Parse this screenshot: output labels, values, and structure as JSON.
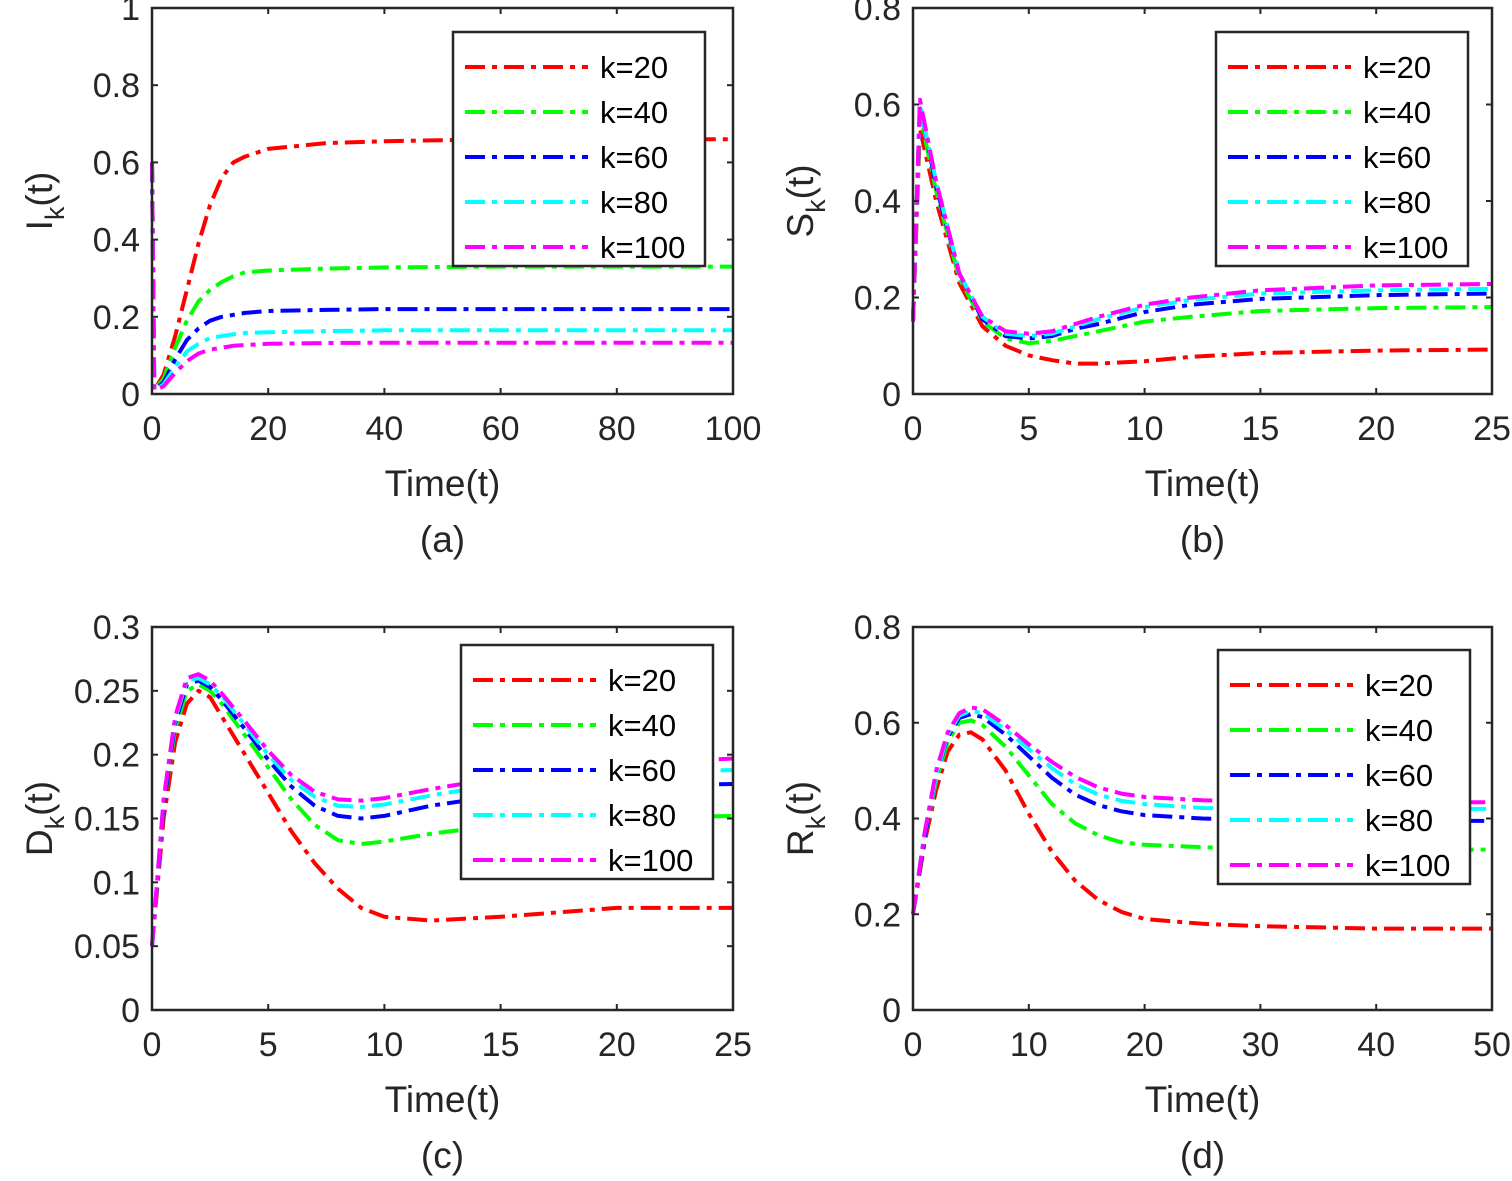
{
  "chart_data": [
    {
      "type": "line",
      "caption": "(a)",
      "xlabel": "Time(t)",
      "ylabel": "I",
      "ylabel_sub": "k",
      "ylabel_tail": "(t)",
      "xlim": [
        0,
        100
      ],
      "ylim": [
        0,
        1
      ],
      "xticks": [
        0,
        20,
        40,
        60,
        80,
        100
      ],
      "yticks": [
        0,
        0.2,
        0.4,
        0.6,
        0.8,
        1
      ],
      "ytick_labels": [
        "0",
        "0.2",
        "0.4",
        "0.6",
        "0.8",
        "1"
      ],
      "grid": false,
      "legend_position": "top-right",
      "series": [
        {
          "name": "k=20",
          "color": "#ff0000",
          "x": [
            0,
            0.4,
            2,
            4,
            6,
            8,
            10,
            12,
            14,
            16,
            20,
            30,
            40,
            60,
            80,
            100
          ],
          "y": [
            0.6,
            0.01,
            0.05,
            0.15,
            0.27,
            0.39,
            0.49,
            0.56,
            0.6,
            0.615,
            0.635,
            0.65,
            0.655,
            0.66,
            0.66,
            0.66
          ]
        },
        {
          "name": "k=40",
          "color": "#00ff00",
          "x": [
            0,
            0.4,
            2,
            4,
            6,
            8,
            10,
            12,
            14,
            16,
            20,
            30,
            40,
            60,
            80,
            100
          ],
          "y": [
            0.6,
            0.01,
            0.04,
            0.12,
            0.19,
            0.24,
            0.27,
            0.29,
            0.305,
            0.315,
            0.32,
            0.325,
            0.328,
            0.33,
            0.33,
            0.33
          ]
        },
        {
          "name": "k=60",
          "color": "#0000ff",
          "x": [
            0,
            0.4,
            2,
            4,
            6,
            8,
            10,
            12,
            14,
            16,
            20,
            30,
            40,
            60,
            80,
            100
          ],
          "y": [
            0.6,
            0.01,
            0.03,
            0.09,
            0.14,
            0.17,
            0.19,
            0.2,
            0.205,
            0.21,
            0.215,
            0.218,
            0.22,
            0.22,
            0.22,
            0.22
          ]
        },
        {
          "name": "k=80",
          "color": "#00ffff",
          "x": [
            0,
            0.4,
            2,
            4,
            6,
            8,
            10,
            12,
            14,
            16,
            20,
            30,
            40,
            60,
            80,
            100
          ],
          "y": [
            0.6,
            0.01,
            0.025,
            0.07,
            0.11,
            0.13,
            0.145,
            0.15,
            0.155,
            0.158,
            0.16,
            0.163,
            0.165,
            0.165,
            0.165,
            0.165
          ]
        },
        {
          "name": "k=100",
          "color": "#ff00ff",
          "x": [
            0,
            0.4,
            2,
            4,
            6,
            8,
            10,
            12,
            14,
            16,
            20,
            30,
            40,
            60,
            80,
            100
          ],
          "y": [
            0.6,
            0.01,
            0.02,
            0.055,
            0.085,
            0.105,
            0.115,
            0.12,
            0.125,
            0.127,
            0.13,
            0.132,
            0.133,
            0.133,
            0.133,
            0.133
          ]
        }
      ]
    },
    {
      "type": "line",
      "caption": "(b)",
      "xlabel": "Time(t)",
      "ylabel": "S",
      "ylabel_sub": "k",
      "ylabel_tail": "(t)",
      "xlim": [
        0,
        25
      ],
      "ylim": [
        0,
        0.8
      ],
      "xticks": [
        0,
        5,
        10,
        15,
        20,
        25
      ],
      "yticks": [
        0,
        0.2,
        0.4,
        0.6,
        0.8
      ],
      "ytick_labels": [
        "0",
        "0.2",
        "0.4",
        "0.6",
        "0.8"
      ],
      "grid": false,
      "legend_position": "top-right",
      "series": [
        {
          "name": "k=20",
          "color": "#ff0000",
          "x": [
            0,
            0.3,
            1,
            2,
            3,
            4,
            5,
            6,
            7,
            8,
            10,
            12,
            15,
            20,
            25
          ],
          "y": [
            0.15,
            0.55,
            0.4,
            0.23,
            0.14,
            0.1,
            0.08,
            0.07,
            0.063,
            0.063,
            0.068,
            0.077,
            0.085,
            0.09,
            0.092
          ]
        },
        {
          "name": "k=40",
          "color": "#00ff00",
          "x": [
            0,
            0.3,
            1,
            2,
            3,
            4,
            5,
            6,
            7,
            8,
            10,
            12,
            15,
            20,
            25
          ],
          "y": [
            0.15,
            0.58,
            0.42,
            0.24,
            0.15,
            0.115,
            0.105,
            0.11,
            0.12,
            0.13,
            0.15,
            0.16,
            0.172,
            0.178,
            0.18
          ]
        },
        {
          "name": "k=60",
          "color": "#0000ff",
          "x": [
            0,
            0.3,
            1,
            2,
            3,
            4,
            5,
            6,
            7,
            8,
            10,
            12,
            15,
            20,
            25
          ],
          "y": [
            0.15,
            0.6,
            0.43,
            0.25,
            0.155,
            0.12,
            0.115,
            0.12,
            0.135,
            0.145,
            0.17,
            0.185,
            0.197,
            0.205,
            0.208
          ]
        },
        {
          "name": "k=80",
          "color": "#00ffff",
          "x": [
            0,
            0.3,
            1,
            2,
            3,
            4,
            5,
            6,
            7,
            8,
            10,
            12,
            15,
            20,
            25
          ],
          "y": [
            0.15,
            0.6,
            0.44,
            0.25,
            0.16,
            0.125,
            0.12,
            0.125,
            0.14,
            0.155,
            0.18,
            0.195,
            0.208,
            0.215,
            0.218
          ]
        },
        {
          "name": "k=100",
          "color": "#ff00ff",
          "x": [
            0,
            0.3,
            1,
            2,
            3,
            4,
            5,
            6,
            7,
            8,
            10,
            12,
            15,
            20,
            25
          ],
          "y": [
            0.15,
            0.61,
            0.44,
            0.25,
            0.16,
            0.13,
            0.125,
            0.13,
            0.145,
            0.16,
            0.185,
            0.2,
            0.215,
            0.225,
            0.228
          ]
        }
      ]
    },
    {
      "type": "line",
      "caption": "(c)",
      "xlabel": "Time(t)",
      "ylabel": "D",
      "ylabel_sub": "k",
      "ylabel_tail": "(t)",
      "xlim": [
        0,
        25
      ],
      "ylim": [
        0,
        0.3
      ],
      "xticks": [
        0,
        5,
        10,
        15,
        20,
        25
      ],
      "yticks": [
        0,
        0.05,
        0.1,
        0.15,
        0.2,
        0.25,
        0.3
      ],
      "ytick_labels": [
        "0",
        "0.05",
        "0.1",
        "0.15",
        "0.2",
        "0.25",
        "0.3"
      ],
      "grid": false,
      "legend_position": "top-right",
      "series": [
        {
          "name": "k=20",
          "color": "#ff0000",
          "x": [
            0,
            0.5,
            1,
            1.5,
            2,
            2.5,
            3,
            4,
            5,
            6,
            7,
            8,
            9,
            10,
            12,
            15,
            20,
            25
          ],
          "y": [
            0.05,
            0.15,
            0.21,
            0.24,
            0.25,
            0.245,
            0.23,
            0.2,
            0.17,
            0.14,
            0.115,
            0.095,
            0.08,
            0.073,
            0.07,
            0.073,
            0.08,
            0.08
          ]
        },
        {
          "name": "k=40",
          "color": "#00ff00",
          "x": [
            0,
            0.5,
            1,
            1.5,
            2,
            2.5,
            3,
            4,
            5,
            6,
            7,
            8,
            9,
            10,
            12,
            15,
            20,
            25
          ],
          "y": [
            0.05,
            0.16,
            0.22,
            0.25,
            0.255,
            0.25,
            0.24,
            0.215,
            0.19,
            0.165,
            0.145,
            0.133,
            0.13,
            0.132,
            0.138,
            0.145,
            0.15,
            0.152
          ]
        },
        {
          "name": "k=60",
          "color": "#0000ff",
          "x": [
            0,
            0.5,
            1,
            1.5,
            2,
            2.5,
            3,
            4,
            5,
            6,
            7,
            8,
            9,
            10,
            12,
            15,
            20,
            25
          ],
          "y": [
            0.05,
            0.16,
            0.225,
            0.255,
            0.258,
            0.253,
            0.243,
            0.22,
            0.196,
            0.175,
            0.16,
            0.152,
            0.15,
            0.152,
            0.16,
            0.168,
            0.175,
            0.177
          ]
        },
        {
          "name": "k=80",
          "color": "#00ffff",
          "x": [
            0,
            0.5,
            1,
            1.5,
            2,
            2.5,
            3,
            4,
            5,
            6,
            7,
            8,
            9,
            10,
            12,
            15,
            20,
            25
          ],
          "y": [
            0.05,
            0.165,
            0.228,
            0.258,
            0.26,
            0.255,
            0.246,
            0.223,
            0.2,
            0.18,
            0.167,
            0.16,
            0.159,
            0.161,
            0.168,
            0.177,
            0.185,
            0.188
          ]
        },
        {
          "name": "k=100",
          "color": "#ff00ff",
          "x": [
            0,
            0.5,
            1,
            1.5,
            2,
            2.5,
            3,
            4,
            5,
            6,
            7,
            8,
            9,
            10,
            12,
            15,
            20,
            25
          ],
          "y": [
            0.05,
            0.165,
            0.23,
            0.26,
            0.263,
            0.258,
            0.248,
            0.226,
            0.203,
            0.184,
            0.171,
            0.165,
            0.164,
            0.166,
            0.173,
            0.182,
            0.192,
            0.197
          ]
        }
      ]
    },
    {
      "type": "line",
      "caption": "(d)",
      "xlabel": "Time(t)",
      "ylabel": "R",
      "ylabel_sub": "k",
      "ylabel_tail": "(t)",
      "xlim": [
        0,
        50
      ],
      "ylim": [
        0,
        0.8
      ],
      "xticks": [
        0,
        10,
        20,
        30,
        40,
        50
      ],
      "yticks": [
        0,
        0.2,
        0.4,
        0.6,
        0.8
      ],
      "ytick_labels": [
        "0",
        "0.2",
        "0.4",
        "0.6",
        "0.8"
      ],
      "grid": false,
      "legend_position": "top-right",
      "series": [
        {
          "name": "k=20",
          "color": "#ff0000",
          "x": [
            0,
            1,
            2,
            3,
            4,
            5,
            6,
            8,
            10,
            12,
            14,
            16,
            18,
            20,
            25,
            30,
            40,
            50
          ],
          "y": [
            0.2,
            0.35,
            0.46,
            0.54,
            0.575,
            0.58,
            0.565,
            0.5,
            0.41,
            0.33,
            0.27,
            0.23,
            0.205,
            0.19,
            0.18,
            0.175,
            0.17,
            0.17
          ]
        },
        {
          "name": "k=40",
          "color": "#00ff00",
          "x": [
            0,
            1,
            2,
            3,
            4,
            5,
            6,
            8,
            10,
            12,
            14,
            16,
            18,
            20,
            25,
            30,
            40,
            50
          ],
          "y": [
            0.2,
            0.36,
            0.48,
            0.56,
            0.6,
            0.605,
            0.595,
            0.55,
            0.49,
            0.43,
            0.39,
            0.365,
            0.35,
            0.345,
            0.34,
            0.337,
            0.335,
            0.335
          ]
        },
        {
          "name": "k=60",
          "color": "#0000ff",
          "x": [
            0,
            1,
            2,
            3,
            4,
            5,
            6,
            8,
            10,
            12,
            14,
            16,
            18,
            20,
            25,
            30,
            40,
            50
          ],
          "y": [
            0.2,
            0.36,
            0.49,
            0.57,
            0.61,
            0.618,
            0.612,
            0.575,
            0.53,
            0.485,
            0.45,
            0.428,
            0.415,
            0.407,
            0.4,
            0.397,
            0.395,
            0.395
          ]
        },
        {
          "name": "k=80",
          "color": "#00ffff",
          "x": [
            0,
            1,
            2,
            3,
            4,
            5,
            6,
            8,
            10,
            12,
            14,
            16,
            18,
            20,
            25,
            30,
            40,
            50
          ],
          "y": [
            0.2,
            0.37,
            0.49,
            0.575,
            0.615,
            0.625,
            0.62,
            0.585,
            0.545,
            0.505,
            0.472,
            0.45,
            0.437,
            0.43,
            0.422,
            0.42,
            0.42,
            0.42
          ]
        },
        {
          "name": "k=100",
          "color": "#ff00ff",
          "x": [
            0,
            1,
            2,
            3,
            4,
            5,
            6,
            8,
            10,
            12,
            14,
            16,
            18,
            20,
            25,
            30,
            40,
            50
          ],
          "y": [
            0.2,
            0.37,
            0.5,
            0.58,
            0.62,
            0.632,
            0.628,
            0.595,
            0.555,
            0.518,
            0.487,
            0.465,
            0.452,
            0.445,
            0.438,
            0.435,
            0.434,
            0.434
          ]
        }
      ]
    }
  ]
}
